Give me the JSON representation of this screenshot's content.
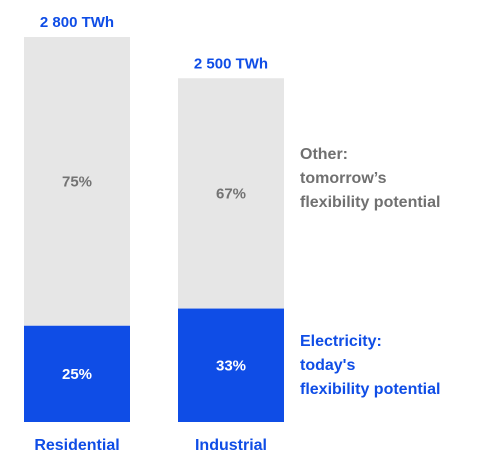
{
  "chart_data": {
    "type": "bar",
    "stacked": true,
    "categories": [
      "Residential",
      "Industrial"
    ],
    "totals": [
      {
        "value": 2800,
        "label": "2 800 TWh"
      },
      {
        "value": 2500,
        "label": "2 500 TWh"
      }
    ],
    "series": [
      {
        "name": "Electricity: today's flexibility potential",
        "values": [
          25,
          33
        ],
        "value_labels": [
          "25%",
          "33%"
        ],
        "color": "#0f4de6"
      },
      {
        "name": "Other: tomorrow’s flexibility potential",
        "values": [
          75,
          67
        ],
        "value_labels": [
          "75%",
          "67%"
        ],
        "color": "#e6e6e6"
      }
    ],
    "legend": {
      "placement": "right",
      "entries": [
        {
          "series": 1,
          "lines": [
            "Other:",
            "tomorrow’s",
            "flexibility potential"
          ],
          "color": "#707070"
        },
        {
          "series": 0,
          "lines": [
            "Electricity:",
            "today's",
            "flexibility potential"
          ],
          "color": "#0f4de6"
        }
      ]
    },
    "units": "%",
    "grid": false,
    "axes_visible": false
  },
  "colors": {
    "accent": "#0f4de6",
    "grey_bar": "#e6e6e6",
    "grey_text": "#707070",
    "pct_on_grey": "#737373",
    "pct_on_blue": "#ffffff"
  }
}
